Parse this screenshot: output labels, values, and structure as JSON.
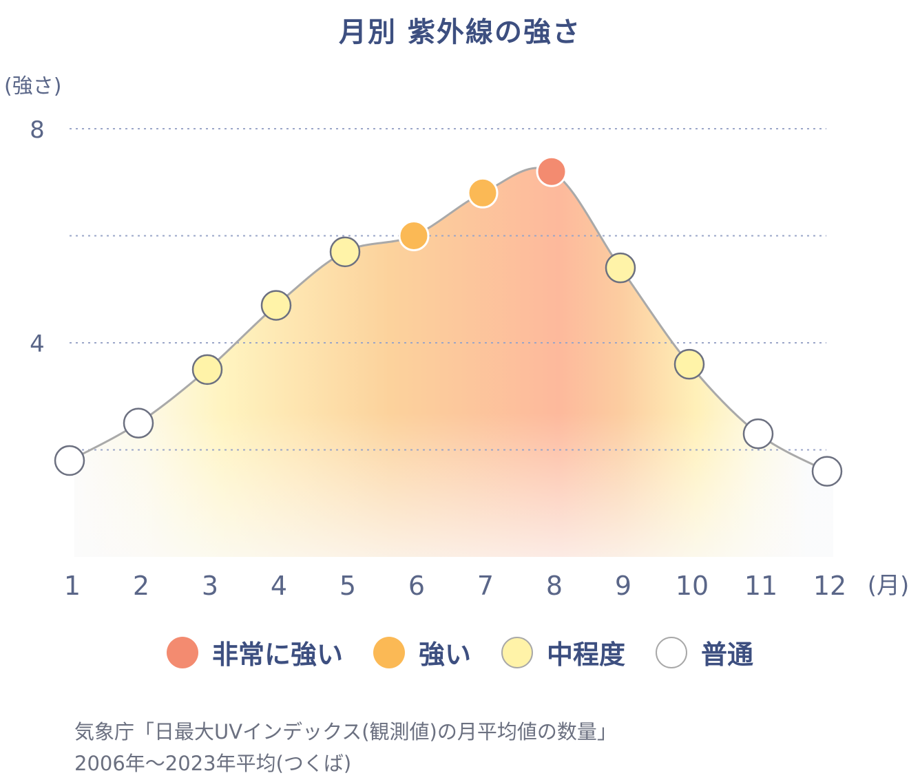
{
  "chart_data": {
    "type": "area",
    "title": "月別 紫外線の強さ",
    "ylabel": "(強さ)",
    "xlabel": "(月)",
    "ylim": [
      0,
      8
    ],
    "yticks": [
      "4",
      "8"
    ],
    "grid": true,
    "categories": [
      "1",
      "2",
      "3",
      "4",
      "5",
      "6",
      "7",
      "8",
      "9",
      "10",
      "11",
      "12"
    ],
    "values": [
      1.8,
      2.5,
      3.5,
      4.7,
      5.7,
      6.0,
      6.8,
      7.2,
      5.4,
      3.6,
      2.3,
      1.6
    ],
    "levels": [
      "普通",
      "普通",
      "中程度",
      "中程度",
      "中程度",
      "強い",
      "強い",
      "非常に強い",
      "中程度",
      "中程度",
      "普通",
      "普通"
    ],
    "legend_position": "bottom",
    "legend": [
      {
        "label": "非常に強い",
        "color": "#f38b70"
      },
      {
        "label": "強い",
        "color": "#fbb955"
      },
      {
        "label": "中程度",
        "color": "#fff3a8"
      },
      {
        "label": "普通",
        "color": "#ffffff"
      }
    ]
  },
  "source_note": {
    "line1": "気象庁「日最大UVインデックス(観測値)の月平均値の数量」",
    "line2": "2006年〜2023年平均(つくば)"
  }
}
